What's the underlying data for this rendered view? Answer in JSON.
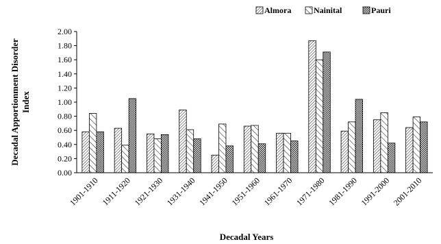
{
  "chart_data": {
    "type": "bar",
    "title": "",
    "xlabel": "Decadal Years",
    "ylabel_lines": [
      "Decadal Apportionment  Disorder",
      "Index"
    ],
    "ylim": [
      0,
      2
    ],
    "yticks": [
      "0.00",
      "0.20",
      "0.40",
      "0.60",
      "0.80",
      "1.00",
      "1.20",
      "1.40",
      "1.60",
      "1.80",
      "2.00"
    ],
    "grid": false,
    "legend_position": "top-right",
    "categories": [
      "1901-1910",
      "1911-1920",
      "1921-1930",
      "1931-1940",
      "1941-1950",
      "1951-1960",
      "1961-1970",
      "1971-1980",
      "1981-1990",
      "1991-2000",
      "2001-2010"
    ],
    "series": [
      {
        "name": "Almora",
        "pattern": "hatch-dense",
        "values": [
          0.58,
          0.63,
          0.55,
          0.89,
          0.25,
          0.66,
          0.56,
          1.87,
          0.59,
          0.75,
          0.64
        ]
      },
      {
        "name": "Nainital",
        "pattern": "hatch-wide",
        "values": [
          0.84,
          0.39,
          0.48,
          0.61,
          0.69,
          0.67,
          0.56,
          1.6,
          0.72,
          0.85,
          0.79
        ]
      },
      {
        "name": "Pauri",
        "pattern": "checker",
        "values": [
          0.58,
          1.05,
          0.54,
          0.48,
          0.38,
          0.41,
          0.45,
          1.71,
          1.04,
          0.42,
          0.72
        ]
      }
    ]
  }
}
